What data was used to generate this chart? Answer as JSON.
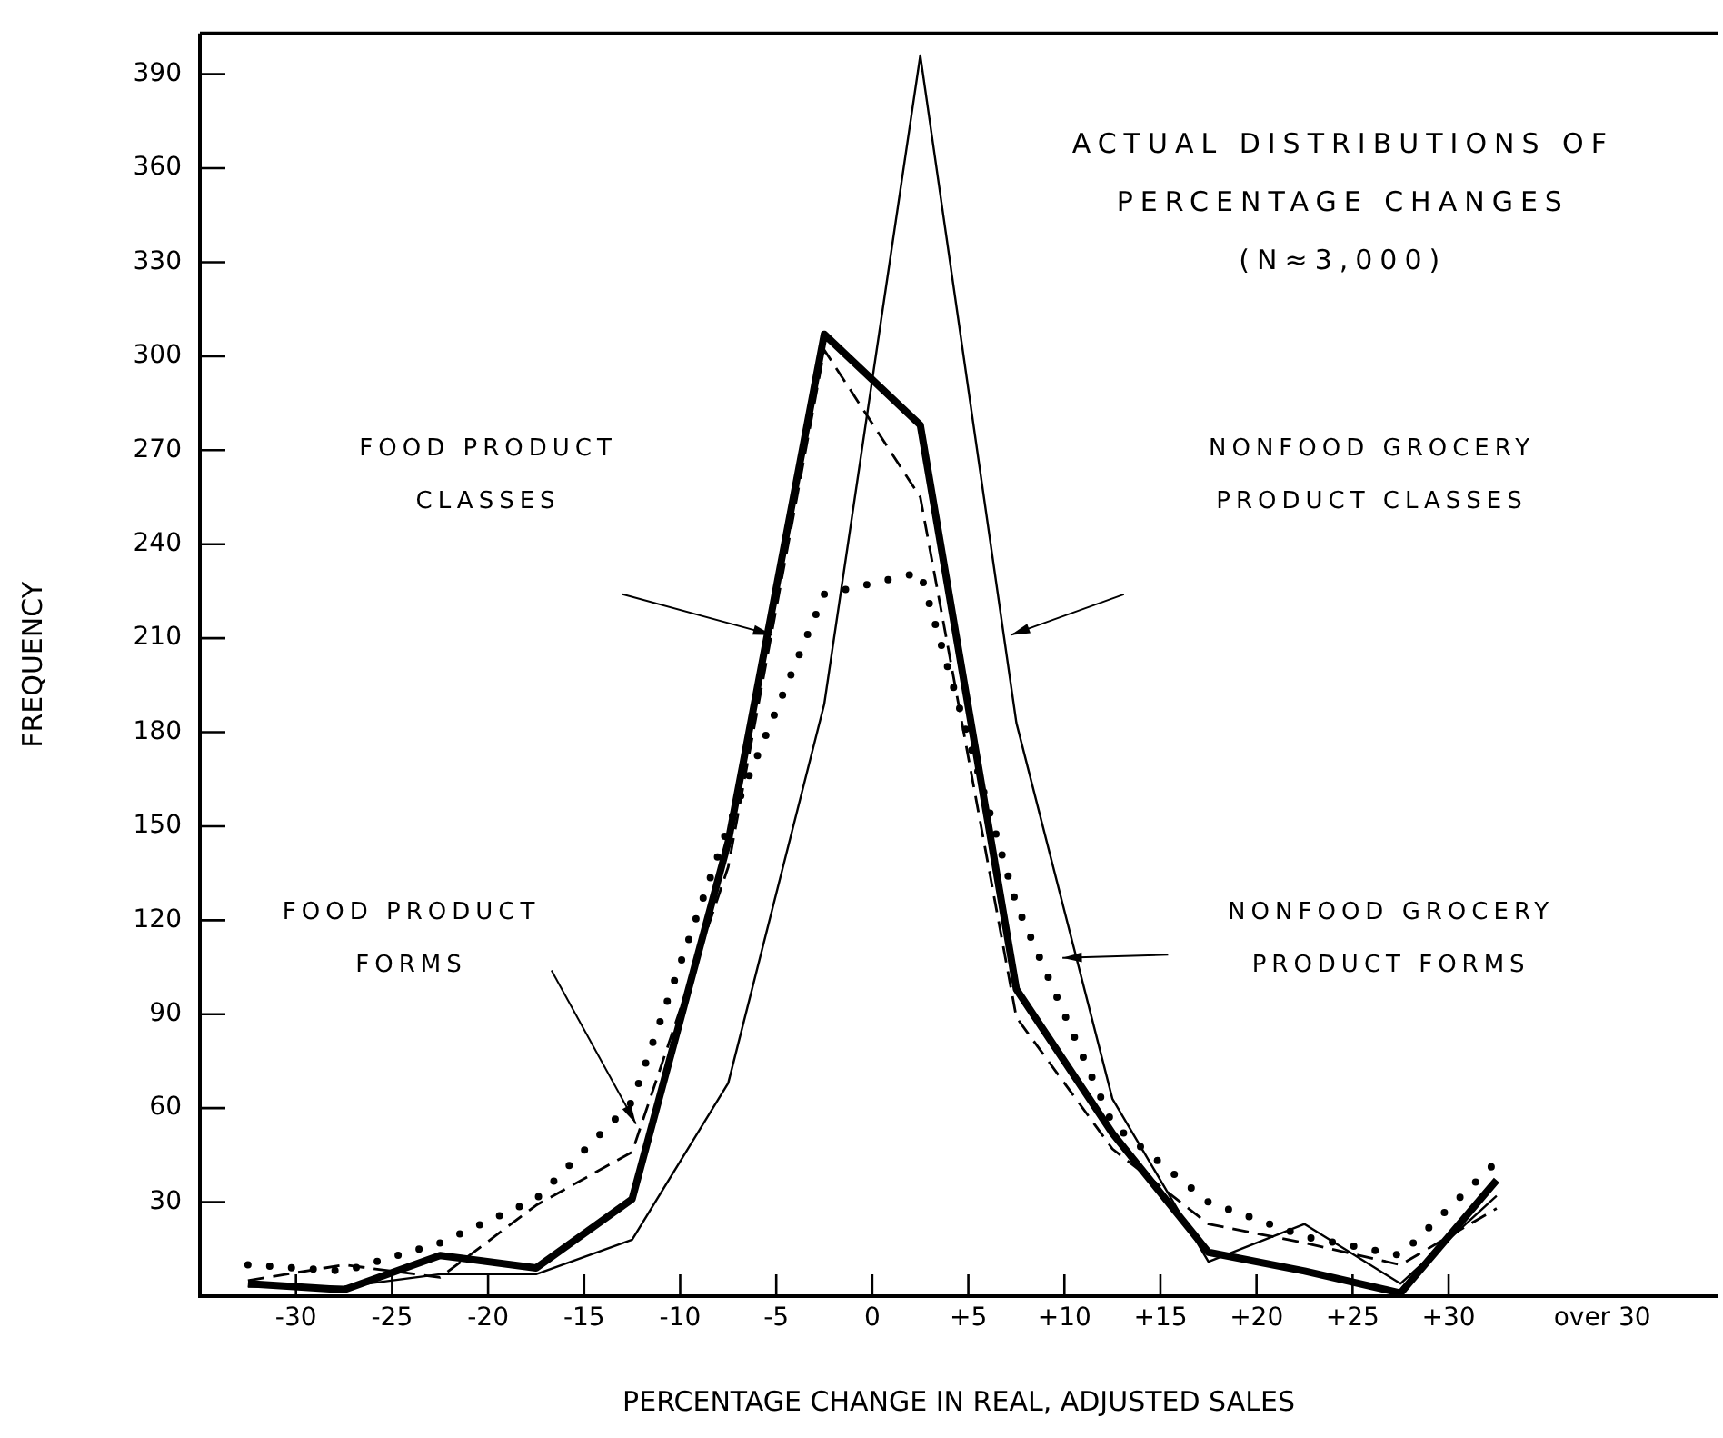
{
  "chart_data": {
    "type": "line",
    "title": "ACTUAL DISTRIBUTIONS OF PERCENTAGE CHANGES",
    "subtitle": "(N≈3,000)",
    "xlabel": "PERCENTAGE CHANGE IN REAL, ADJUSTED SALES",
    "ylabel": "FREQUENCY",
    "x": [
      -32.5,
      -27.5,
      -22.5,
      -17.5,
      -12.5,
      -7.5,
      -2.5,
      2.5,
      7.5,
      12.5,
      17.5,
      22.5,
      27.5,
      32.5
    ],
    "series": [
      {
        "color": "#000000",
        "line_style": "solid",
        "values": [
          4,
          2,
          13,
          9,
          31,
          145,
          307,
          278,
          98,
          52,
          14,
          8,
          1,
          37
        ]
      },
      {
        "color": "#000000",
        "line_style": "solid",
        "values": [
          3,
          3,
          7,
          7,
          18,
          68,
          189,
          396,
          183,
          63,
          11,
          23,
          4,
          32
        ]
      },
      {
        "color": "#000000",
        "line_style": "dashed",
        "values": [
          5,
          10,
          6,
          29,
          46,
          137,
          302,
          255,
          89,
          47,
          23,
          17,
          10,
          28
        ]
      },
      {
        "color": "#000000",
        "line_style": "dotted",
        "values": [
          10,
          8,
          17,
          31,
          62,
          150,
          224,
          231,
          125,
          55,
          30,
          19,
          13,
          43
        ]
      }
    ],
    "xlim": [
      -35,
      44
    ],
    "ylim": [
      0,
      403
    ],
    "xticks": [
      -30,
      -25,
      -20,
      -15,
      -10,
      -5,
      0,
      {
        "value": 5,
        "label": "+5"
      },
      {
        "value": 10,
        "label": "+10"
      },
      {
        "value": 15,
        "label": "+15"
      },
      {
        "value": 20,
        "label": "+20"
      },
      {
        "value": 25,
        "label": "+25"
      },
      {
        "value": 30,
        "label": "+30"
      },
      {
        "value": 38,
        "label": "over 30"
      }
    ],
    "yticks": [
      30,
      60,
      90,
      120,
      150,
      180,
      210,
      240,
      270,
      300,
      330,
      360,
      390
    ],
    "annotations": [
      "FOOD PRODUCT CLASSES",
      "NONFOOD GROCERY PRODUCT CLASSES",
      "FOOD PRODUCT FORMS",
      "NONFOOD GROCERY PRODUCT FORMS"
    ],
    "grid": false,
    "legend": false,
    "marker": "none"
  }
}
